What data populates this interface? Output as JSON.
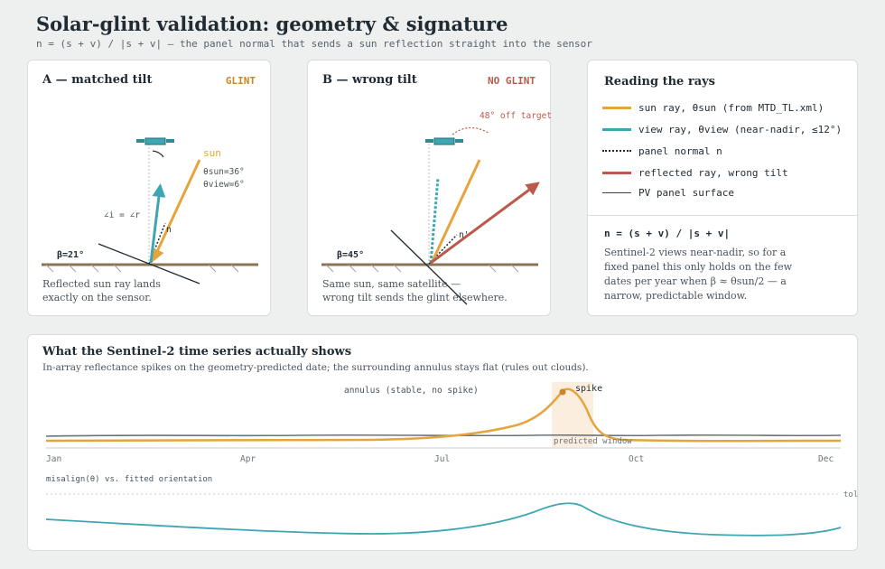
{
  "header": {
    "title": "Solar-glint validation: geometry & signature",
    "subtitle": "n = (s + v) / |s + v| — the panel normal that sends a sun reflection straight into the sensor"
  },
  "panel_a": {
    "title": "A — matched tilt",
    "tag": "GLINT",
    "beta_label": "β=21°",
    "sun_label": "sun",
    "sun_angle": "θsun=36°",
    "view_angle": "θview=6°",
    "angle_eq": "∠i = ∠r",
    "normal_label": "n",
    "caption_line1": "Reflected sun ray lands",
    "caption_line2": "exactly on the sensor."
  },
  "panel_b": {
    "title": "B — wrong tilt",
    "tag": "NO GLINT",
    "beta_label": "β=45°",
    "normal_label": "n'",
    "off_target": "48° off target",
    "caption_line1": "Same sun, same satellite —",
    "caption_line2": "wrong tilt sends the glint elsewhere."
  },
  "legend": {
    "title": "Reading the rays",
    "items": [
      {
        "label": "sun ray, θsun (from MTD_TL.xml)",
        "color": "#e6a43c",
        "style": "solid"
      },
      {
        "label": "view ray, θview (near-nadir, ≤12°)",
        "color": "#3ea6b3",
        "style": "solid"
      },
      {
        "label": "panel normal n",
        "color": "#1f2a33",
        "style": "dotted"
      },
      {
        "label": "reflected ray, wrong tilt",
        "color": "#b95a4c",
        "style": "solid"
      },
      {
        "label": "PV panel surface",
        "color": "#3a4148",
        "style": "solid"
      }
    ],
    "formula": "n = (s + v) / |s + v|",
    "note_line1": "Sentinel-2 views near-nadir, so for a",
    "note_line2": "fixed panel this only holds on the few",
    "note_line3": "dates per year when β ≈ θsun/2 — a",
    "note_line4": "narrow, predictable window."
  },
  "timeseries": {
    "title": "What the Sentinel-2 time series actually shows",
    "subtitle": "In-array reflectance spikes on the geometry-predicted date; the surrounding annulus stays flat (rules out clouds).",
    "annulus_label": "annulus (stable, no spike)",
    "spike_label": "spike",
    "window_label": "predicted window",
    "months": [
      "Jan",
      "Apr",
      "Jul",
      "Oct",
      "Dec"
    ],
    "misalign_label": "misalign(θ) vs. fitted orientation",
    "tol_label": "tol."
  },
  "colors": {
    "sun": "#e6a43c",
    "view": "#3ea6b3",
    "wrong": "#b95a4c",
    "glint_tag": "#c8862a",
    "no_glint_tag": "#b95a4c",
    "ground": "#8b7355"
  }
}
